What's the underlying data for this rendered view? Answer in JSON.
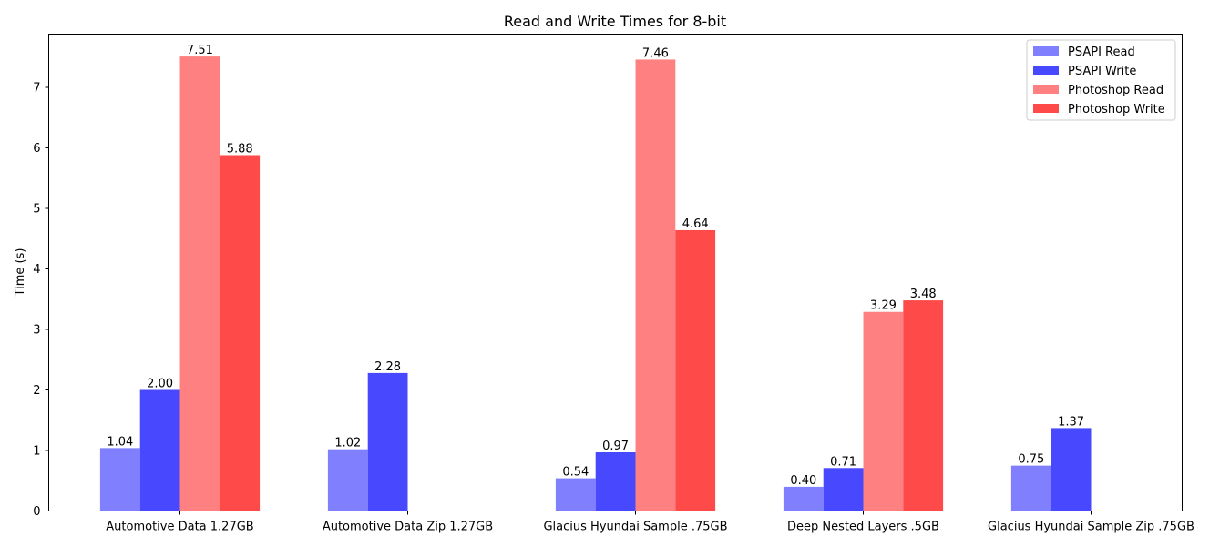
{
  "chart_data": {
    "type": "bar",
    "title": "Read and Write Times for 8-bit",
    "xlabel": "",
    "ylabel": "Time (s)",
    "ylim": [
      0,
      7.88
    ],
    "yticks": [
      "0",
      "1",
      "2",
      "3",
      "4",
      "5",
      "6",
      "7"
    ],
    "categories": [
      "Automotive Data 1.27GB",
      "Automotive Data Zip 1.27GB",
      "Glacius Hyundai Sample .75GB",
      "Deep Nested Layers .5GB",
      "Glacius Hyundai Sample Zip .75GB"
    ],
    "series": [
      {
        "name": "PSAPI Read",
        "color": "#8080ff",
        "values": [
          1.04,
          1.02,
          0.54,
          0.4,
          0.75
        ],
        "labels": [
          "1.04",
          "1.02",
          "0.54",
          "0.40",
          "0.75"
        ]
      },
      {
        "name": "PSAPI Write",
        "color": "#4848ff",
        "values": [
          2.0,
          2.28,
          0.97,
          0.71,
          1.37
        ],
        "labels": [
          "2.00",
          "2.28",
          "0.97",
          "0.71",
          "1.37"
        ]
      },
      {
        "name": "Photoshop Read",
        "color": "#ff8080",
        "values": [
          7.51,
          null,
          7.46,
          3.29,
          null
        ],
        "labels": [
          "7.51",
          "",
          "7.46",
          "3.29",
          ""
        ]
      },
      {
        "name": "Photoshop Write",
        "color": "#ff4a4a",
        "values": [
          5.88,
          null,
          4.64,
          3.48,
          null
        ],
        "labels": [
          "5.88",
          "",
          "4.64",
          "3.48",
          ""
        ]
      }
    ],
    "legend_position": "top-right",
    "grid": false
  }
}
